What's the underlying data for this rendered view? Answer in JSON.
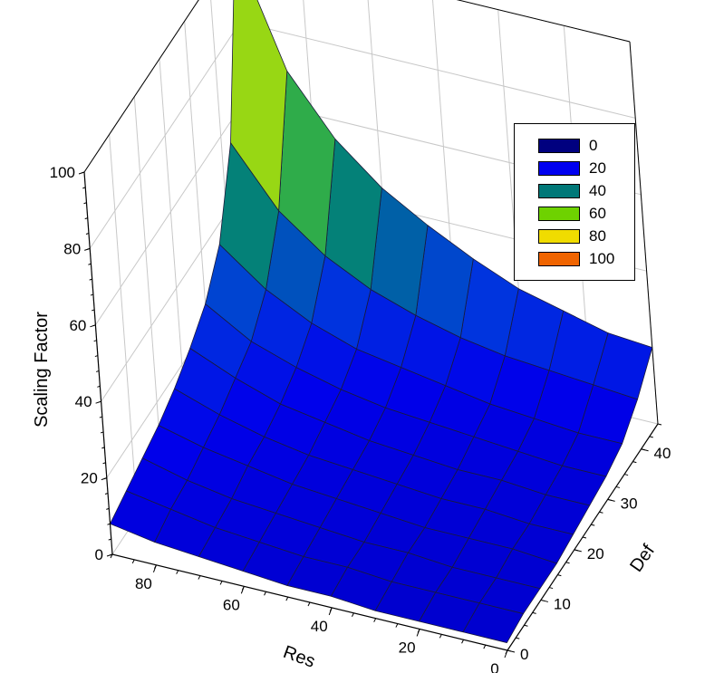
{
  "chart_data": {
    "type": "surface3d",
    "title": "",
    "zlabel": "Scaling Factor",
    "xlabel": "Res",
    "ylabel": "Def",
    "x_ticks": [
      0,
      20,
      40,
      60,
      80
    ],
    "y_ticks": [
      0,
      10,
      20,
      30,
      40
    ],
    "z_ticks": [
      0,
      20,
      40,
      60,
      80,
      100
    ],
    "xlim": [
      0,
      90
    ],
    "ylim": [
      0,
      45
    ],
    "zlim": [
      0,
      100
    ],
    "grid": true,
    "legend_position": "top-right",
    "x": [
      90,
      80,
      70,
      60,
      50,
      40,
      30,
      20,
      10,
      0
    ],
    "y": [
      0,
      5,
      10,
      15,
      20,
      25,
      30,
      35,
      40,
      45
    ],
    "z": [
      [
        8,
        6,
        5,
        4,
        3,
        3,
        2,
        2,
        2,
        2
      ],
      [
        10,
        8,
        6,
        5,
        4,
        4,
        3,
        3,
        3,
        3
      ],
      [
        12,
        9,
        7,
        6,
        5,
        4,
        4,
        3,
        3,
        3
      ],
      [
        14,
        11,
        9,
        7,
        6,
        5,
        4,
        4,
        4,
        3
      ],
      [
        17,
        13,
        10,
        8,
        7,
        6,
        5,
        5,
        4,
        4
      ],
      [
        21,
        16,
        12,
        10,
        8,
        7,
        6,
        6,
        5,
        5
      ],
      [
        26,
        19,
        15,
        12,
        10,
        9,
        8,
        7,
        6,
        6
      ],
      [
        35,
        26,
        20,
        16,
        14,
        12,
        10,
        9,
        8,
        8
      ],
      [
        55,
        40,
        31,
        25,
        21,
        18,
        16,
        15,
        14,
        13
      ],
      [
        100,
        70,
        55,
        45,
        38,
        32,
        27,
        24,
        21,
        20
      ]
    ],
    "legend": [
      {
        "label": "0",
        "color": "#00007f"
      },
      {
        "label": "20",
        "color": "#0000f0"
      },
      {
        "label": "40",
        "color": "#007878"
      },
      {
        "label": "60",
        "color": "#6ed200"
      },
      {
        "label": "80",
        "color": "#f0dc00"
      },
      {
        "label": "100",
        "color": "#f06400"
      }
    ]
  }
}
